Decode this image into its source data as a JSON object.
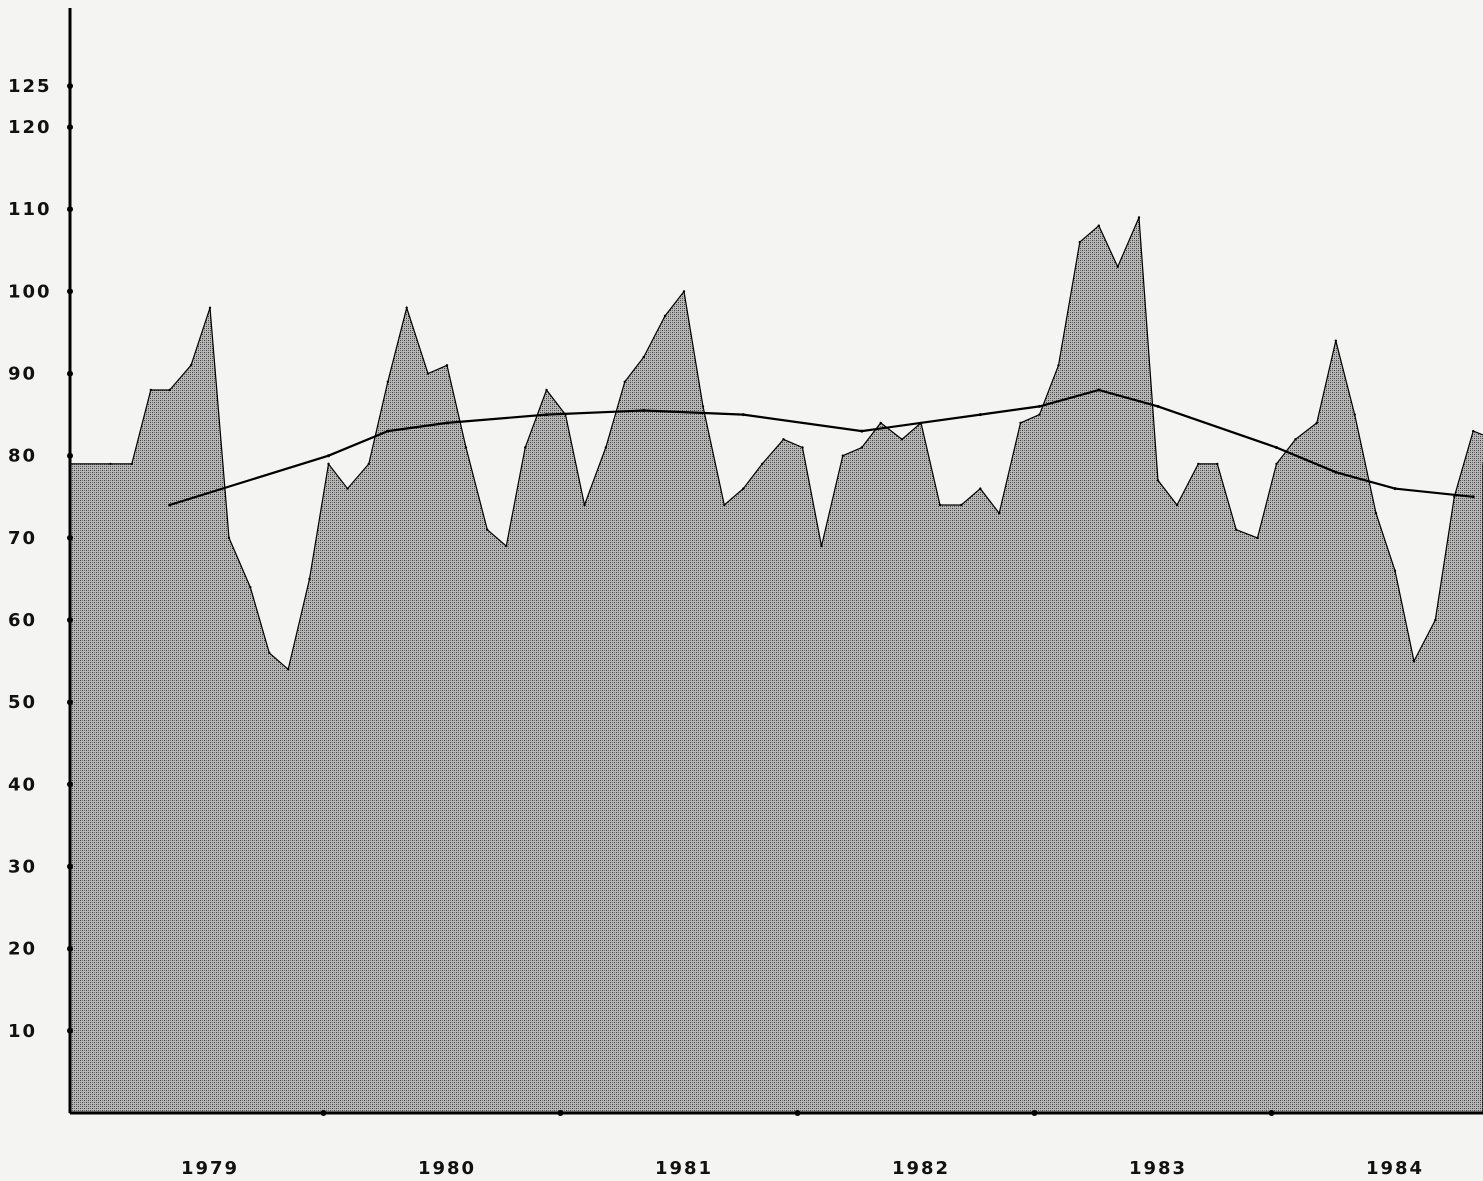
{
  "chart_data": {
    "type": "area",
    "title": "",
    "xlabel": "",
    "ylabel": "",
    "ylim": [
      0,
      140
    ],
    "yticks": [
      10,
      20,
      30,
      40,
      50,
      60,
      70,
      80,
      90,
      100,
      110,
      120,
      125
    ],
    "xticks": [
      "1979",
      "1980",
      "1981",
      "1982",
      "1983",
      "1984"
    ],
    "grid": false,
    "colors": {
      "fill": "#a9a9a9",
      "line": "#000000",
      "axis": "#000000"
    },
    "series": [
      {
        "type": "area",
        "x": [
          1978.58,
          1978.67,
          1978.75,
          1978.83,
          1978.92,
          1979.0,
          1979.08,
          1979.17,
          1979.25,
          1979.33,
          1979.42,
          1979.5,
          1979.58,
          1979.67,
          1979.75,
          1979.83,
          1979.92,
          1980.0,
          1980.08,
          1980.17,
          1980.25,
          1980.33,
          1980.42,
          1980.5,
          1980.58,
          1980.67,
          1980.75,
          1980.83,
          1980.92,
          1981.0,
          1981.08,
          1981.17,
          1981.25,
          1981.33,
          1981.42,
          1981.5,
          1981.58,
          1981.67,
          1981.75,
          1981.83,
          1981.92,
          1982.0,
          1982.08,
          1982.17,
          1982.25,
          1982.33,
          1982.42,
          1982.5,
          1982.58,
          1982.67,
          1982.75,
          1982.83,
          1982.92,
          1983.0,
          1983.08,
          1983.17,
          1983.25,
          1983.33,
          1983.42,
          1983.5,
          1983.58,
          1983.67,
          1983.75,
          1983.83,
          1983.92,
          1984.0,
          1984.08,
          1984.17,
          1984.25,
          1984.33,
          1984.42,
          1984.5
        ],
        "values": [
          79,
          79,
          88,
          88,
          91,
          98,
          70,
          64,
          56,
          54,
          65,
          79,
          76,
          79,
          89,
          98,
          90,
          91,
          81,
          71,
          69,
          81,
          88,
          85,
          74,
          81,
          89,
          92,
          97,
          100,
          86,
          74,
          76,
          79,
          82,
          81,
          69,
          80,
          81,
          84,
          82,
          84,
          74,
          74,
          76,
          73,
          84,
          85,
          91,
          106,
          108,
          103,
          109,
          77,
          74,
          79,
          79,
          71,
          70,
          79,
          82,
          84,
          94,
          85,
          73,
          66,
          55,
          60,
          75,
          83,
          82,
          79
        ]
      },
      {
        "type": "line",
        "x": [
          1978.83,
          1979.5,
          1979.75,
          1980.0,
          1980.42,
          1980.83,
          1981.25,
          1981.75,
          1982.25,
          1982.5,
          1982.75,
          1983.0,
          1983.5,
          1983.75,
          1984.0,
          1984.33
        ],
        "values": [
          74,
          80,
          83,
          84,
          85,
          85.5,
          85,
          83,
          85,
          86,
          88,
          86,
          81,
          78,
          76,
          75
        ]
      }
    ]
  }
}
